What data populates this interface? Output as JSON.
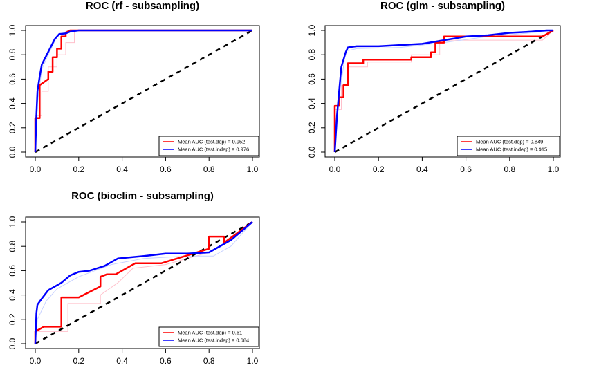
{
  "chart_data": [
    {
      "type": "line",
      "title": "ROC (rf - subsampling)",
      "xlim": [
        0,
        1
      ],
      "ylim": [
        0,
        1
      ],
      "x_ticks": [
        "0.0",
        "0.2",
        "0.4",
        "0.6",
        "0.8",
        "1.0"
      ],
      "y_ticks": [
        "0.0",
        "0.2",
        "0.4",
        "0.6",
        "0.8",
        "1.0"
      ],
      "legend_position": "bottom-right",
      "series": [
        {
          "name": "Mean AUC (test.dep) = 0.952",
          "color": "#ff0000",
          "points": [
            [
              0,
              0
            ],
            [
              0,
              0.28
            ],
            [
              0.02,
              0.28
            ],
            [
              0.02,
              0.55
            ],
            [
              0.06,
              0.6
            ],
            [
              0.06,
              0.66
            ],
            [
              0.08,
              0.66
            ],
            [
              0.08,
              0.78
            ],
            [
              0.1,
              0.78
            ],
            [
              0.1,
              0.85
            ],
            [
              0.12,
              0.85
            ],
            [
              0.12,
              0.95
            ],
            [
              0.14,
              0.95
            ],
            [
              0.14,
              0.98
            ],
            [
              0.16,
              1
            ],
            [
              1,
              1
            ]
          ]
        },
        {
          "name": "Mean AUC (test.indep) = 0.976",
          "color": "#0000ff",
          "points": [
            [
              0,
              0
            ],
            [
              0.005,
              0.3
            ],
            [
              0.01,
              0.5
            ],
            [
              0.02,
              0.62
            ],
            [
              0.03,
              0.72
            ],
            [
              0.05,
              0.79
            ],
            [
              0.07,
              0.86
            ],
            [
              0.09,
              0.93
            ],
            [
              0.11,
              0.97
            ],
            [
              0.14,
              0.975
            ],
            [
              0.16,
              0.99
            ],
            [
              0.2,
              1
            ],
            [
              1,
              1
            ]
          ]
        }
      ],
      "faint_series": [
        {
          "color": "#ffc0cb",
          "points": [
            [
              0,
              0
            ],
            [
              0,
              0.3
            ],
            [
              0.03,
              0.3
            ],
            [
              0.03,
              0.5
            ],
            [
              0.06,
              0.5
            ],
            [
              0.06,
              0.7
            ],
            [
              0.1,
              0.7
            ],
            [
              0.1,
              0.8
            ],
            [
              0.14,
              0.8
            ],
            [
              0.14,
              0.9
            ],
            [
              0.18,
              0.9
            ],
            [
              0.18,
              1
            ],
            [
              1,
              1
            ]
          ]
        },
        {
          "color": "#c8d2ff",
          "points": [
            [
              0,
              0
            ],
            [
              0.01,
              0.4
            ],
            [
              0.03,
              0.68
            ],
            [
              0.06,
              0.8
            ],
            [
              0.1,
              0.95
            ],
            [
              0.15,
              1
            ],
            [
              1,
              1
            ]
          ]
        }
      ],
      "reference_line": {
        "points": [
          [
            0,
            0
          ],
          [
            1,
            1
          ]
        ],
        "style": "dashed"
      }
    },
    {
      "type": "line",
      "title": "ROC (glm - subsampling)",
      "xlim": [
        0,
        1
      ],
      "ylim": [
        0,
        1
      ],
      "x_ticks": [
        "0.0",
        "0.2",
        "0.4",
        "0.6",
        "0.8",
        "1.0"
      ],
      "y_ticks": [
        "0.0",
        "0.2",
        "0.4",
        "0.6",
        "0.8",
        "1.0"
      ],
      "legend_position": "bottom-right",
      "series": [
        {
          "name": "Mean AUC (test.dep) = 0.849",
          "color": "#ff0000",
          "points": [
            [
              0,
              0
            ],
            [
              0,
              0.38
            ],
            [
              0.02,
              0.38
            ],
            [
              0.02,
              0.45
            ],
            [
              0.04,
              0.45
            ],
            [
              0.04,
              0.55
            ],
            [
              0.06,
              0.55
            ],
            [
              0.06,
              0.73
            ],
            [
              0.13,
              0.73
            ],
            [
              0.13,
              0.76
            ],
            [
              0.35,
              0.76
            ],
            [
              0.35,
              0.78
            ],
            [
              0.44,
              0.78
            ],
            [
              0.44,
              0.82
            ],
            [
              0.46,
              0.82
            ],
            [
              0.46,
              0.9
            ],
            [
              0.5,
              0.9
            ],
            [
              0.5,
              0.95
            ],
            [
              0.95,
              0.95
            ],
            [
              1,
              1
            ]
          ]
        },
        {
          "name": "Mean AUC (test.indep) = 0.915",
          "color": "#0000ff",
          "points": [
            [
              0,
              0
            ],
            [
              0.01,
              0.3
            ],
            [
              0.02,
              0.5
            ],
            [
              0.03,
              0.7
            ],
            [
              0.05,
              0.82
            ],
            [
              0.06,
              0.86
            ],
            [
              0.1,
              0.87
            ],
            [
              0.2,
              0.87
            ],
            [
              0.3,
              0.88
            ],
            [
              0.4,
              0.89
            ],
            [
              0.5,
              0.92
            ],
            [
              0.6,
              0.95
            ],
            [
              0.7,
              0.96
            ],
            [
              0.8,
              0.98
            ],
            [
              0.9,
              0.99
            ],
            [
              0.97,
              1
            ],
            [
              1,
              1
            ]
          ]
        }
      ],
      "faint_series": [
        {
          "color": "#ffc0cb",
          "points": [
            [
              0,
              0
            ],
            [
              0,
              0.35
            ],
            [
              0.03,
              0.35
            ],
            [
              0.03,
              0.55
            ],
            [
              0.06,
              0.55
            ],
            [
              0.06,
              0.7
            ],
            [
              0.15,
              0.7
            ],
            [
              0.15,
              0.74
            ],
            [
              0.35,
              0.74
            ],
            [
              0.35,
              0.8
            ],
            [
              0.48,
              0.8
            ],
            [
              0.48,
              0.92
            ],
            [
              0.95,
              0.92
            ],
            [
              1,
              1
            ]
          ]
        },
        {
          "color": "#c8d2ff",
          "points": [
            [
              0,
              0
            ],
            [
              0.02,
              0.45
            ],
            [
              0.05,
              0.83
            ],
            [
              0.1,
              0.85
            ],
            [
              0.3,
              0.86
            ],
            [
              0.5,
              0.9
            ],
            [
              0.7,
              0.95
            ],
            [
              0.9,
              0.98
            ],
            [
              1,
              1
            ]
          ]
        }
      ],
      "reference_line": {
        "points": [
          [
            0,
            0
          ],
          [
            1,
            1
          ]
        ],
        "style": "dashed"
      }
    },
    {
      "type": "line",
      "title": "ROC (bioclim - subsampling)",
      "xlim": [
        0,
        1
      ],
      "ylim": [
        0,
        1
      ],
      "x_ticks": [
        "0.0",
        "0.2",
        "0.4",
        "0.6",
        "0.8",
        "1.0"
      ],
      "y_ticks": [
        "0.0",
        "0.2",
        "0.4",
        "0.6",
        "0.8",
        "1.0"
      ],
      "legend_position": "bottom-right",
      "series": [
        {
          "name": "Mean AUC (test.dep) = 0.61",
          "color": "#ff0000",
          "points": [
            [
              0,
              0
            ],
            [
              0,
              0.1
            ],
            [
              0.04,
              0.14
            ],
            [
              0.12,
              0.14
            ],
            [
              0.12,
              0.38
            ],
            [
              0.2,
              0.38
            ],
            [
              0.3,
              0.47
            ],
            [
              0.3,
              0.55
            ],
            [
              0.33,
              0.57
            ],
            [
              0.37,
              0.57
            ],
            [
              0.46,
              0.66
            ],
            [
              0.58,
              0.66
            ],
            [
              0.8,
              0.78
            ],
            [
              0.8,
              0.88
            ],
            [
              0.87,
              0.88
            ],
            [
              0.87,
              0.83
            ],
            [
              1,
              1
            ]
          ]
        },
        {
          "name": "Mean AUC (test.indep) = 0.684",
          "color": "#0000ff",
          "points": [
            [
              0,
              0
            ],
            [
              0.005,
              0.25
            ],
            [
              0.01,
              0.32
            ],
            [
              0.03,
              0.37
            ],
            [
              0.06,
              0.44
            ],
            [
              0.09,
              0.47
            ],
            [
              0.12,
              0.5
            ],
            [
              0.16,
              0.56
            ],
            [
              0.2,
              0.59
            ],
            [
              0.25,
              0.6
            ],
            [
              0.32,
              0.64
            ],
            [
              0.38,
              0.7
            ],
            [
              0.44,
              0.71
            ],
            [
              0.5,
              0.72
            ],
            [
              0.6,
              0.74
            ],
            [
              0.7,
              0.74
            ],
            [
              0.8,
              0.75
            ],
            [
              0.9,
              0.85
            ],
            [
              1,
              1
            ]
          ]
        }
      ],
      "faint_series": [
        {
          "color": "#ffc0cb",
          "points": [
            [
              0,
              0
            ],
            [
              0,
              0.1
            ],
            [
              0.15,
              0.1
            ],
            [
              0.15,
              0.33
            ],
            [
              0.3,
              0.33
            ],
            [
              0.3,
              0.4
            ],
            [
              0.38,
              0.5
            ],
            [
              0.45,
              0.62
            ],
            [
              0.6,
              0.65
            ],
            [
              0.8,
              0.75
            ],
            [
              0.9,
              0.85
            ],
            [
              1,
              1
            ]
          ]
        },
        {
          "color": "#c8d2ff",
          "points": [
            [
              0,
              0
            ],
            [
              0.01,
              0.2
            ],
            [
              0.05,
              0.35
            ],
            [
              0.1,
              0.45
            ],
            [
              0.2,
              0.55
            ],
            [
              0.35,
              0.65
            ],
            [
              0.5,
              0.7
            ],
            [
              0.7,
              0.72
            ],
            [
              0.82,
              0.72
            ],
            [
              0.9,
              0.8
            ],
            [
              1,
              1
            ]
          ]
        }
      ],
      "reference_line": {
        "points": [
          [
            0,
            0
          ],
          [
            1,
            1
          ]
        ],
        "style": "dashed"
      }
    }
  ]
}
